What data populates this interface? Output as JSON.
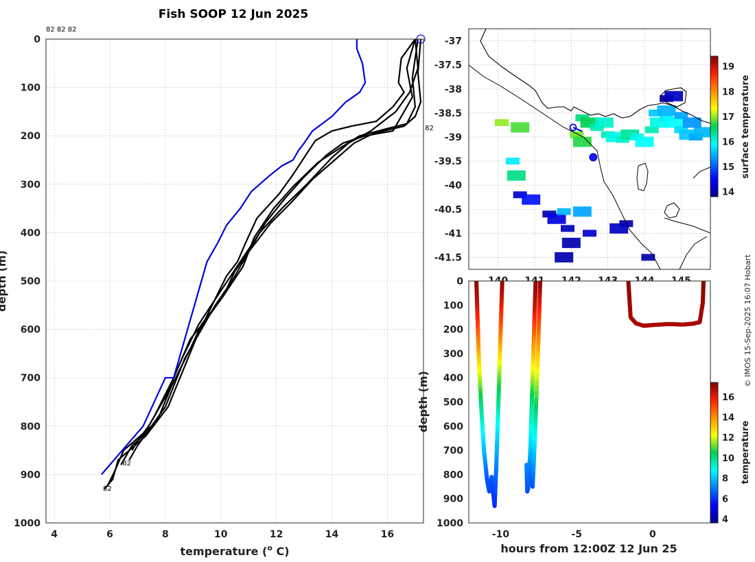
{
  "credit": "© IMOS 15-Sep-2025 16:07 Hobart",
  "chart_data": [
    {
      "type": "line",
      "title": "Fish SOOP 12 Jun 2025",
      "xlabel": "temperature (",
      "xlabel_sup": "o",
      "xlabel_end": " C)",
      "ylabel": "depth (m)",
      "xlim": [
        3.7,
        17.3
      ],
      "ylim": [
        1000,
        0
      ],
      "xticks": [
        "4",
        "6",
        "8",
        "10",
        "12",
        "14",
        "16"
      ],
      "yticks": [
        "0",
        "100",
        "200",
        "300",
        "400",
        "500",
        "600",
        "700",
        "800",
        "900",
        "1000"
      ],
      "grid": true,
      "top_note": "82 82 82",
      "profile_labels": [
        {
          "text": "82",
          "t": 17.5,
          "d": 183
        },
        {
          "text": "82",
          "t": 6.6,
          "d": 875
        },
        {
          "text": "82",
          "t": 5.9,
          "d": 928
        }
      ],
      "surface_marker": {
        "t": 17.2,
        "d": 0
      },
      "series": [
        {
          "name": "highlighted profile",
          "color": "#0000dd",
          "t": [
            14.9,
            14.9,
            15.1,
            15.2,
            15.0,
            14.5,
            14.0,
            13.3,
            13.0,
            12.8,
            12.6,
            12.2,
            11.8,
            11.1,
            10.7,
            10.2,
            9.9,
            9.5,
            9.1,
            8.7,
            8.3,
            8.0,
            7.2,
            5.7
          ],
          "d": [
            0,
            20,
            50,
            90,
            110,
            130,
            160,
            190,
            215,
            230,
            250,
            262,
            280,
            315,
            350,
            385,
            420,
            460,
            540,
            620,
            700,
            700,
            800,
            900
          ]
        },
        {
          "name": "profile 2",
          "color": "#000000",
          "t": [
            17.0,
            16.5,
            16.4,
            16.6,
            16.2,
            15.6,
            14.7,
            14.0,
            13.4,
            12.6,
            12.1,
            11.3,
            10.9,
            10.6,
            10.2,
            9.6,
            9.1,
            8.6,
            8.1,
            7.3,
            6.9,
            6.3,
            6.1,
            5.8
          ],
          "d": [
            0,
            40,
            90,
            110,
            140,
            170,
            180,
            190,
            210,
            280,
            320,
            370,
            420,
            460,
            490,
            560,
            620,
            690,
            760,
            820,
            840,
            870,
            910,
            930
          ]
        },
        {
          "name": "profile 3",
          "color": "#000000",
          "t": [
            17.0,
            16.7,
            16.9,
            16.6,
            16.2,
            15.2,
            14.4,
            13.8,
            13.0,
            12.3,
            11.6,
            11.0,
            10.5,
            10.1,
            9.3,
            8.9,
            8.2,
            7.7,
            6.9,
            6.5,
            6.2,
            5.9
          ],
          "d": [
            0,
            60,
            120,
            150,
            190,
            200,
            215,
            240,
            285,
            330,
            380,
            440,
            480,
            530,
            590,
            640,
            720,
            790,
            830,
            850,
            890,
            925
          ]
        },
        {
          "name": "profile 4",
          "color": "#000000",
          "t": [
            17.1,
            16.9,
            17.0,
            16.7,
            16.0,
            15.0,
            14.3,
            13.5,
            12.6,
            11.9,
            11.2,
            10.8,
            10.1,
            9.6,
            8.9,
            8.3,
            7.6,
            7.2,
            6.8,
            6.4
          ],
          "d": [
            0,
            80,
            140,
            175,
            185,
            200,
            225,
            255,
            305,
            350,
            410,
            470,
            530,
            570,
            620,
            700,
            780,
            820,
            840,
            880
          ]
        },
        {
          "name": "profile 5",
          "color": "#000000",
          "t": [
            17.0,
            17.1,
            16.8,
            16.3,
            15.4,
            14.6,
            14.0,
            13.1,
            12.2,
            11.4,
            10.7,
            10.0,
            9.2,
            8.6,
            8.0,
            7.4,
            7.0,
            6.8
          ],
          "d": [
            0,
            60,
            110,
            150,
            190,
            215,
            245,
            300,
            350,
            400,
            460,
            520,
            590,
            660,
            740,
            800,
            830,
            850
          ]
        },
        {
          "name": "profile 6",
          "color": "#000000",
          "t": [
            17.2,
            17.1,
            17.2,
            17.0,
            16.6,
            15.5,
            14.8,
            14.1,
            13.3,
            12.5,
            11.8,
            11.0,
            10.4,
            9.8,
            9.3,
            8.7,
            8.0,
            7.5,
            7.0,
            6.7
          ],
          "d": [
            0,
            70,
            130,
            160,
            180,
            195,
            215,
            250,
            290,
            340,
            380,
            440,
            500,
            550,
            600,
            660,
            760,
            800,
            840,
            870
          ]
        }
      ]
    },
    {
      "type": "heatmap",
      "title": "",
      "xlabel": "",
      "ylabel": "",
      "colorbar_label": "surface temperature",
      "colorbar_range": [
        13.8,
        19.4
      ],
      "colorbar_ticks": [
        "14",
        "15",
        "16",
        "17",
        "18",
        "19"
      ],
      "xlim": [
        139.2,
        145.8
      ],
      "ylim": [
        -41.75,
        -36.75
      ],
      "xticks": [
        "140",
        "141",
        "142",
        "143",
        "144",
        "145"
      ],
      "yticks": [
        "-37",
        "-37.5",
        "-38",
        "-38.5",
        "-39",
        "-39.5",
        "-40",
        "-40.5",
        "-41",
        "-41.5"
      ],
      "track_start": {
        "lon": 142.05,
        "lat": -38.8
      },
      "track_end": {
        "lon": 142.6,
        "lat": -39.42
      },
      "sst_cells": [
        {
          "lon": 143.0,
          "lat": -38.95,
          "sst": 16.2
        },
        {
          "lon": 143.2,
          "lat": -39.0,
          "sst": 16.0
        },
        {
          "lon": 143.4,
          "lat": -39.05,
          "sst": 16.1
        },
        {
          "lon": 143.6,
          "lat": -38.95,
          "sst": 16.3
        },
        {
          "lon": 143.8,
          "lat": -39.0,
          "sst": 16.0
        },
        {
          "lon": 144.0,
          "lat": -39.1,
          "sst": 15.9
        },
        {
          "lon": 144.2,
          "lat": -38.85,
          "sst": 16.2
        },
        {
          "lon": 144.4,
          "lat": -38.7,
          "sst": 16.0
        },
        {
          "lon": 144.6,
          "lat": -38.6,
          "sst": 15.8
        },
        {
          "lon": 144.8,
          "lat": -38.7,
          "sst": 15.9
        },
        {
          "lon": 145.0,
          "lat": -38.85,
          "sst": 15.7
        },
        {
          "lon": 145.2,
          "lat": -38.95,
          "sst": 15.6
        },
        {
          "lon": 145.4,
          "lat": -39.0,
          "sst": 15.4
        },
        {
          "lon": 145.6,
          "lat": -38.9,
          "sst": 15.5
        },
        {
          "lon": 144.3,
          "lat": -38.5,
          "sst": 15.6
        },
        {
          "lon": 144.6,
          "lat": -38.45,
          "sst": 15.5
        },
        {
          "lon": 145.0,
          "lat": -38.55,
          "sst": 15.4
        },
        {
          "lon": 145.3,
          "lat": -38.7,
          "sst": 15.3
        },
        {
          "lon": 142.3,
          "lat": -38.6,
          "sst": 16.4
        },
        {
          "lon": 142.5,
          "lat": -38.7,
          "sst": 16.6
        },
        {
          "lon": 142.7,
          "lat": -38.8,
          "sst": 16.2
        },
        {
          "lon": 142.9,
          "lat": -38.7,
          "sst": 16.1
        },
        {
          "lon": 142.15,
          "lat": -38.95,
          "sst": 16.9
        },
        {
          "lon": 142.3,
          "lat": -39.1,
          "sst": 16.7
        },
        {
          "lon": 144.6,
          "lat": -38.2,
          "sst": 14.0
        },
        {
          "lon": 144.8,
          "lat": -38.15,
          "sst": 14.1
        },
        {
          "lon": 140.1,
          "lat": -38.7,
          "sst": 17.0
        },
        {
          "lon": 140.6,
          "lat": -38.8,
          "sst": 16.8
        },
        {
          "lon": 140.4,
          "lat": -39.5,
          "sst": 15.8
        },
        {
          "lon": 140.5,
          "lat": -39.8,
          "sst": 16.4
        },
        {
          "lon": 140.6,
          "lat": -40.2,
          "sst": 14.2
        },
        {
          "lon": 140.9,
          "lat": -40.3,
          "sst": 14.6
        },
        {
          "lon": 141.4,
          "lat": -40.6,
          "sst": 14.0
        },
        {
          "lon": 141.6,
          "lat": -40.7,
          "sst": 14.3
        },
        {
          "lon": 141.8,
          "lat": -40.55,
          "sst": 15.5
        },
        {
          "lon": 142.3,
          "lat": -40.55,
          "sst": 15.4
        },
        {
          "lon": 141.9,
          "lat": -40.9,
          "sst": 14.1
        },
        {
          "lon": 142.0,
          "lat": -41.2,
          "sst": 14.0
        },
        {
          "lon": 142.5,
          "lat": -41.0,
          "sst": 14.2
        },
        {
          "lon": 141.8,
          "lat": -41.5,
          "sst": 14.0
        },
        {
          "lon": 143.5,
          "lat": -40.8,
          "sst": 14.0
        },
        {
          "lon": 143.3,
          "lat": -40.9,
          "sst": 14.1
        },
        {
          "lon": 144.1,
          "lat": -41.5,
          "sst": 14.0
        }
      ]
    },
    {
      "type": "scatter",
      "title": "",
      "xlabel": "hours from 12:00Z 12 Jun 25",
      "ylabel": "depth (m)",
      "colorbar_label": "temperature",
      "colorbar_range": [
        3.6,
        17.4
      ],
      "colorbar_ticks": [
        "4",
        "6",
        "8",
        "10",
        "12",
        "14",
        "16"
      ],
      "xlim": [
        -12.1,
        3.8
      ],
      "ylim": [
        1000,
        0
      ],
      "xticks": [
        "-10",
        "-5",
        "0"
      ],
      "yticks": [
        "0",
        "100",
        "200",
        "300",
        "400",
        "500",
        "600",
        "700",
        "800",
        "900",
        "1000"
      ],
      "tracks": [
        {
          "name": "dive 1",
          "h": [
            -11.6,
            -11.55,
            -11.45,
            -11.3,
            -11.1,
            -10.9,
            -10.75,
            -10.6,
            -10.5,
            -10.4,
            -10.3,
            -10.2,
            -10.1,
            -10.0,
            -9.9
          ],
          "d": [
            0,
            100,
            300,
            500,
            700,
            820,
            870,
            810,
            870,
            930,
            780,
            600,
            400,
            200,
            0
          ],
          "t": [
            17.2,
            16.5,
            13.5,
            10.2,
            8.0,
            6.5,
            6.2,
            6.6,
            6.2,
            5.8,
            6.9,
            8.6,
            11.0,
            14.5,
            17.2
          ]
        },
        {
          "name": "dive 2",
          "h": [
            -7.7,
            -7.75,
            -7.85,
            -7.95,
            -8.05,
            -8.15,
            -8.25,
            -8.3,
            -8.2,
            -8.1,
            -8.0,
            -7.9,
            -7.75,
            -7.55,
            -7.4
          ],
          "d": [
            0,
            100,
            300,
            500,
            700,
            820,
            870,
            760,
            860,
            750,
            820,
            850,
            650,
            300,
            0
          ],
          "t": [
            17.2,
            16.6,
            13.4,
            10.1,
            8.0,
            6.6,
            6.3,
            7.2,
            6.4,
            7.3,
            6.6,
            6.4,
            8.6,
            13.1,
            17.2
          ]
        },
        {
          "name": "dive 3",
          "h": [
            -1.6,
            -1.45,
            -1.1,
            -0.6,
            0,
            1.0,
            2.0,
            2.7,
            3.1,
            3.3,
            3.35
          ],
          "d": [
            0,
            150,
            175,
            185,
            182,
            178,
            180,
            176,
            170,
            90,
            0
          ],
          "t": [
            17.2,
            16.9,
            16.8,
            16.8,
            16.8,
            16.8,
            16.8,
            16.8,
            16.9,
            17.0,
            17.2
          ]
        }
      ]
    }
  ]
}
